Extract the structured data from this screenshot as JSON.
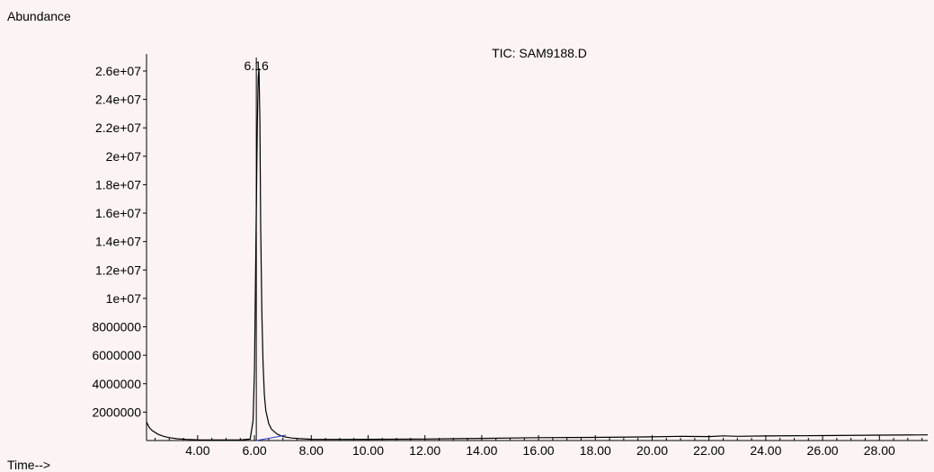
{
  "chart_data": {
    "type": "line",
    "title": "TIC: SAM9188.D",
    "ylabel": "Abundance",
    "xlabel": "Time-->",
    "xlim": [
      2.2,
      29.7
    ],
    "ylim": [
      0,
      27200000
    ],
    "yticks": [
      {
        "value": 2000000,
        "label": "2000000"
      },
      {
        "value": 4000000,
        "label": "4000000"
      },
      {
        "value": 6000000,
        "label": "6000000"
      },
      {
        "value": 8000000,
        "label": "8000000"
      },
      {
        "value": 10000000,
        "label": "1e+07"
      },
      {
        "value": 12000000,
        "label": "1.2e+07"
      },
      {
        "value": 14000000,
        "label": "1.4e+07"
      },
      {
        "value": 16000000,
        "label": "1.6e+07"
      },
      {
        "value": 18000000,
        "label": "1.8e+07"
      },
      {
        "value": 20000000,
        "label": "2e+07"
      },
      {
        "value": 22000000,
        "label": "2.2e+07"
      },
      {
        "value": 24000000,
        "label": "2.4e+07"
      },
      {
        "value": 26000000,
        "label": "2.6e+07"
      }
    ],
    "xticks": [
      {
        "value": 4,
        "label": "4.00"
      },
      {
        "value": 6,
        "label": "6.00"
      },
      {
        "value": 8,
        "label": "8.00"
      },
      {
        "value": 10,
        "label": "10.00"
      },
      {
        "value": 12,
        "label": "12.00"
      },
      {
        "value": 14,
        "label": "14.00"
      },
      {
        "value": 16,
        "label": "16.00"
      },
      {
        "value": 18,
        "label": "18.00"
      },
      {
        "value": 20,
        "label": "20.00"
      },
      {
        "value": 22,
        "label": "22.00"
      },
      {
        "value": 24,
        "label": "24.00"
      },
      {
        "value": 26,
        "label": "26.00"
      },
      {
        "value": 28,
        "label": "28.00"
      }
    ],
    "peak_annotations": [
      {
        "x": 6.16,
        "label": "6.16"
      }
    ],
    "series": [
      {
        "x": [
          2.2,
          2.3,
          2.4,
          2.6,
          2.8,
          3.0,
          3.3,
          3.6,
          4.0,
          4.5,
          5.0,
          5.5,
          5.85,
          5.95,
          6.0,
          6.05,
          6.1,
          6.13,
          6.16,
          6.19,
          6.22,
          6.26,
          6.3,
          6.35,
          6.4,
          6.5,
          6.6,
          6.8,
          7.0,
          7.3,
          7.6,
          8.0,
          9.0,
          10.0,
          12.0,
          14.0,
          16.0,
          18.0,
          20.0,
          21.0,
          22.0,
          22.5,
          23.0,
          24.0,
          26.0,
          28.0,
          29.7
        ],
        "y": [
          1300000,
          900000,
          700000,
          450000,
          300000,
          200000,
          120000,
          80000,
          50000,
          40000,
          40000,
          40000,
          100000,
          1400000,
          5000000,
          14000000,
          22000000,
          25500000,
          26200000,
          22500000,
          15000000,
          9000000,
          5500000,
          3200000,
          2100000,
          1200000,
          800000,
          450000,
          280000,
          180000,
          130000,
          90000,
          80000,
          90000,
          110000,
          150000,
          200000,
          220000,
          260000,
          300000,
          280000,
          330000,
          300000,
          320000,
          350000,
          380000,
          400000
        ]
      }
    ]
  }
}
